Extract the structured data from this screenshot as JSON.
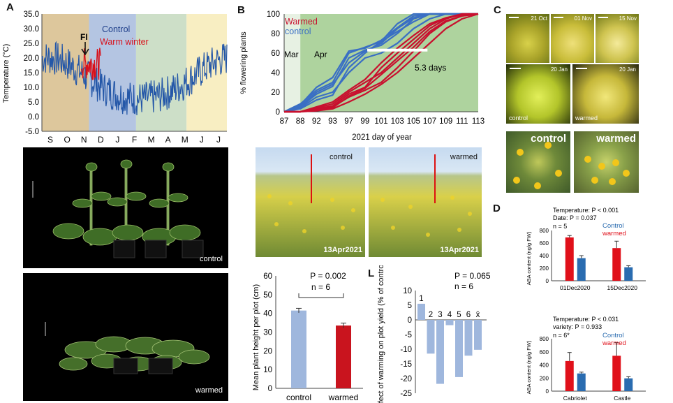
{
  "panels": {
    "A": "A",
    "B": "B",
    "C": "C",
    "D": "D",
    "L": "L"
  },
  "panelA": {
    "ylabel": "Temperature (°C)",
    "yticks": [
      "35.0",
      "30.0",
      "25.0",
      "20.0",
      "15.0",
      "10.0",
      "5.0",
      "0.0",
      "-5.0"
    ],
    "months": [
      "S",
      "O",
      "N",
      "D",
      "J",
      "F",
      "M",
      "A",
      "M",
      "J",
      "J"
    ],
    "fi_label": "FI",
    "legend_control": "Control",
    "legend_warm": "Warm winter",
    "photo_top_caption": "control",
    "photo_bottom_caption": "warmed",
    "colors": {
      "control": "#2457a8",
      "warm": "#d8101a",
      "autumn": "#ddc79c",
      "winter": "#b4c5e2",
      "spring": "#cddfc8",
      "summer": "#f8eec2"
    }
  },
  "chart_data": [
    {
      "id": "flowering",
      "type": "line",
      "ylabel": "% flowering plants",
      "xlabel": "2021 day of year",
      "x_ticks": [
        "87",
        "88",
        "92",
        "93",
        "97",
        "99",
        "101",
        "103",
        "105",
        "107",
        "109",
        "111",
        "113"
      ],
      "y_ticks": [
        "0",
        "20",
        "40",
        "60",
        "80",
        "100"
      ],
      "ylim": [
        0,
        100
      ],
      "legend": [
        "Warmed",
        "control"
      ],
      "month_labels": [
        "Mar",
        "Apr"
      ],
      "annotation": "5.3 days",
      "colors": {
        "warmed": "#c8102e",
        "control": "#3a6fc4",
        "mar_bg": "#e7f1e3",
        "apr_bg": "#aed39e"
      },
      "series": [
        {
          "group": "control",
          "values": [
            0,
            3,
            12,
            17,
            45,
            60,
            72,
            82,
            92,
            100,
            100,
            100,
            100
          ]
        },
        {
          "group": "control",
          "values": [
            0,
            5,
            18,
            26,
            55,
            63,
            68,
            80,
            95,
            100,
            100,
            100,
            100
          ]
        },
        {
          "group": "control",
          "values": [
            0,
            8,
            22,
            30,
            60,
            66,
            72,
            90,
            100,
            100,
            100,
            100,
            100
          ]
        },
        {
          "group": "control",
          "values": [
            0,
            4,
            15,
            20,
            40,
            55,
            60,
            70,
            85,
            95,
            100,
            100,
            100
          ]
        },
        {
          "group": "control",
          "values": [
            0,
            6,
            20,
            28,
            50,
            62,
            70,
            85,
            96,
            100,
            100,
            100,
            100
          ]
        },
        {
          "group": "control",
          "values": [
            0,
            7,
            25,
            35,
            62,
            65,
            73,
            86,
            98,
            100,
            100,
            100,
            100
          ]
        },
        {
          "group": "warmed",
          "values": [
            0,
            0,
            2,
            5,
            15,
            22,
            30,
            45,
            62,
            80,
            92,
            98,
            100
          ]
        },
        {
          "group": "warmed",
          "values": [
            0,
            0,
            4,
            8,
            20,
            30,
            40,
            55,
            70,
            85,
            95,
            100,
            100
          ]
        },
        {
          "group": "warmed",
          "values": [
            0,
            0,
            3,
            6,
            18,
            25,
            45,
            60,
            74,
            88,
            96,
            99,
            100
          ]
        },
        {
          "group": "warmed",
          "values": [
            0,
            0,
            1,
            3,
            10,
            18,
            28,
            40,
            55,
            70,
            85,
            95,
            100
          ]
        },
        {
          "group": "warmed",
          "values": [
            0,
            0,
            5,
            10,
            22,
            33,
            50,
            65,
            78,
            90,
            96,
            100,
            100
          ]
        },
        {
          "group": "warmed",
          "values": [
            0,
            0,
            2,
            4,
            16,
            24,
            38,
            52,
            66,
            82,
            93,
            98,
            100
          ]
        }
      ]
    },
    {
      "id": "height",
      "type": "bar",
      "ylabel": "Mean plant height per plot (cm)",
      "categories": [
        "control",
        "warmed"
      ],
      "values": [
        41.5,
        33.5
      ],
      "errors": [
        1.2,
        1.3
      ],
      "y_ticks": [
        "0",
        "10",
        "20",
        "30",
        "40",
        "50",
        "60"
      ],
      "ylim": [
        0,
        60
      ],
      "annotation_p": "P = 0.002",
      "annotation_n": "n = 6",
      "colors": [
        "#9fb7dd",
        "#c9141e"
      ]
    },
    {
      "id": "yield",
      "type": "bar",
      "ylabel": "Effect of warming on plot yield (% of control)",
      "categories": [
        "1",
        "2",
        "3",
        "4",
        "5",
        "6",
        "x̄"
      ],
      "values": [
        5.5,
        -11.5,
        -21.8,
        -1.8,
        -19.5,
        -12.2,
        -10.2
      ],
      "y_ticks": [
        "10",
        "5",
        "0",
        "-5",
        "-10",
        "-15",
        "-20",
        "-25"
      ],
      "ylim": [
        -25,
        10
      ],
      "annotation_p": "P = 0.065",
      "annotation_n": "n = 6",
      "color": "#9fb7dd"
    },
    {
      "id": "aba_date",
      "type": "bar",
      "ylabel": "ABA content (ng/g FW)",
      "categories": [
        "01Dec2020",
        "15Dec2020"
      ],
      "series": [
        {
          "name": "Control",
          "values": [
            360,
            215
          ],
          "errors": [
            40,
            25
          ]
        },
        {
          "name": "warmed",
          "values": [
            690,
            520
          ],
          "errors": [
            30,
            110
          ]
        }
      ],
      "y_ticks": [
        "0",
        "200",
        "400",
        "600",
        "800"
      ],
      "ylim": [
        0,
        800
      ],
      "stats": [
        "Temperature: P < 0.001",
        "Date: P = 0.037",
        "n = 5"
      ],
      "colors": {
        "control": "#2a6cb0",
        "warmed": "#e0101a"
      }
    },
    {
      "id": "aba_variety",
      "type": "bar",
      "ylabel": "ABA content (ng/g FW)",
      "categories": [
        "Cabriolet",
        "Castle"
      ],
      "series": [
        {
          "name": "Control",
          "values": [
            270,
            195
          ],
          "errors": [
            20,
            25
          ]
        },
        {
          "name": "warmed",
          "values": [
            460,
            540
          ],
          "errors": [
            130,
            200
          ]
        }
      ],
      "y_ticks": [
        "0",
        "200",
        "400",
        "600",
        "800"
      ],
      "ylim": [
        0,
        800
      ],
      "stats": [
        "Temperature: P < 0.031",
        "variety: P = 0.933",
        "n = 6*"
      ],
      "colors": {
        "control": "#2a6cb0",
        "warmed": "#e0101a"
      }
    }
  ],
  "panelB_photos": {
    "left_label": "control",
    "right_label": "warmed",
    "left_date": "13Apr2021",
    "right_date": "13Apr2021"
  },
  "panelC": {
    "dates_top": [
      "21 Oct",
      "01 Nov",
      "15 Nov"
    ],
    "dates_mid": [
      "20 Jan",
      "20 Jan"
    ],
    "mid_labels": [
      "control",
      "warmed"
    ],
    "bottom_labels": [
      "control",
      "warmed"
    ]
  }
}
